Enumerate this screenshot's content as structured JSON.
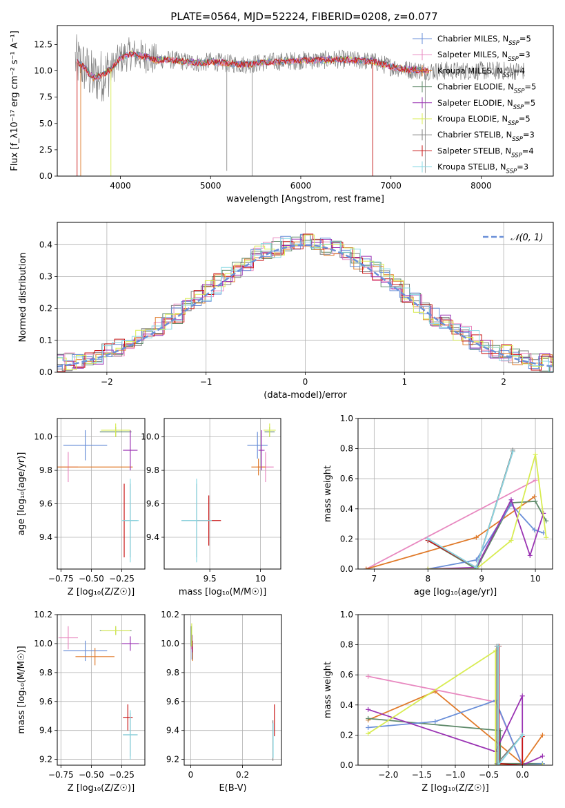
{
  "figure": {
    "title": "PLATE=0564, MJD=52224, FIBERID=0208, z=0.077"
  },
  "colors": {
    "blue": "#6a8fd8",
    "pink": "#e889c0",
    "orange": "#e07a2a",
    "green": "#5f8a6a",
    "purple": "#9a33b3",
    "yellow": "#d8ec52",
    "gray": "#7f7f7f",
    "red": "#c81414",
    "cyan": "#88d8e4"
  },
  "chart_data": [
    {
      "id": "spectrum",
      "type": "line",
      "xlabel": "wavelength [Angstrom, rest frame]",
      "ylabel": "Flux [f_λ10⁻¹⁷ erg cm⁻² s⁻¹ A⁻¹]",
      "xlim": [
        3300,
        8800
      ],
      "ylim": [
        0,
        14.3
      ],
      "xticks": [
        4000,
        5000,
        6000,
        7000,
        8000
      ],
      "yticks": [
        0.0,
        2.5,
        5.0,
        7.5,
        10.0,
        12.5
      ],
      "data_x": [
        3500,
        3600,
        3700,
        3800,
        3900,
        4000,
        4100,
        4200,
        4300,
        4400,
        4500,
        4600,
        4700,
        4800,
        4900,
        5000,
        5200,
        5400,
        5600,
        5800,
        6000,
        6200,
        6400,
        6600,
        6800,
        7000,
        7200,
        7400
      ],
      "data_y": [
        11.0,
        10.3,
        9.3,
        9.6,
        10.2,
        11.2,
        11.6,
        11.5,
        11.3,
        11.0,
        11.1,
        11.0,
        10.9,
        10.8,
        10.7,
        10.9,
        10.7,
        10.6,
        10.8,
        10.9,
        11.0,
        11.0,
        11.1,
        11.0,
        10.9,
        10.4,
        10.1,
        10.0
      ],
      "legend": [
        {
          "label": "Chabrier MILES, N",
          "sub": "SSP",
          "n": "=5",
          "color": "blue"
        },
        {
          "label": "Salpeter MILES, N",
          "sub": "SSP",
          "n": "=3",
          "color": "pink"
        },
        {
          "label": "Kroupa MILES, N",
          "sub": "SSP",
          "n": "=4",
          "color": "orange"
        },
        {
          "label": "Chabrier ELODIE, N",
          "sub": "SSP",
          "n": "=5",
          "color": "green"
        },
        {
          "label": "Salpeter ELODIE, N",
          "sub": "SSP",
          "n": "=5",
          "color": "purple"
        },
        {
          "label": "Kroupa ELODIE, N",
          "sub": "SSP",
          "n": "=5",
          "color": "yellow"
        },
        {
          "label": "Chabrier STELIB, N",
          "sub": "SSP",
          "n": "=3",
          "color": "gray"
        },
        {
          "label": "Salpeter STELIB, N",
          "sub": "SSP",
          "n": "=4",
          "color": "red"
        },
        {
          "label": "Kroupa STELIB, N",
          "sub": "SSP",
          "n": "=3",
          "color": "cyan"
        }
      ]
    },
    {
      "id": "residuals",
      "type": "histogram",
      "xlabel": "(data-model)/error",
      "ylabel": "Normed distribution",
      "xlim": [
        -2.5,
        2.5
      ],
      "ylim": [
        0,
        0.47
      ],
      "xticks": [
        -2,
        -1,
        0,
        1,
        2
      ],
      "yticks": [
        0.0,
        0.1,
        0.2,
        0.3,
        0.4
      ],
      "bin_width": 0.1,
      "grid": true,
      "legend": "𝒩(0, 1)",
      "legend_position": "top-right",
      "gaussian": {
        "mean": 0,
        "sigma": 1
      }
    },
    {
      "id": "age_vs_z",
      "type": "errorbar",
      "xlabel": "Z [log₁₀(Z/Z☉)]",
      "ylabel": "age  [log₁₀(age/yr)]",
      "xlim": [
        -0.78,
        -0.06
      ],
      "ylim": [
        9.21,
        10.11
      ],
      "xticks": [
        -0.75,
        -0.5,
        -0.25
      ],
      "xticklabels": [
        "−0.75",
        "−0.50",
        "−0.25"
      ],
      "yticks": [
        9.4,
        9.6,
        9.8,
        10.0
      ],
      "grid": true,
      "points": [
        {
          "color": "blue",
          "x": -0.55,
          "xerr": 0.18,
          "y": 9.95,
          "yerr": 0.09
        },
        {
          "color": "pink",
          "x": -0.69,
          "xerr": 0.08,
          "y": 9.82,
          "yerr": 0.09
        },
        {
          "color": "orange",
          "x": -0.47,
          "xerr": 0.31,
          "y": 9.82,
          "yerr": 0.0
        },
        {
          "color": "green",
          "x": -0.3,
          "xerr": 0.13,
          "y": 10.03,
          "yerr": 0.03
        },
        {
          "color": "purple",
          "x": -0.18,
          "xerr": 0.06,
          "y": 9.92,
          "yerr": 0.12
        },
        {
          "color": "yellow",
          "x": -0.3,
          "xerr": 0.12,
          "y": 10.04,
          "yerr": 0.04
        },
        {
          "color": "gray",
          "x": -0.18,
          "xerr": 0.06,
          "y": 9.5,
          "yerr": 0.22
        },
        {
          "color": "red",
          "x": -0.23,
          "xerr": 0.0,
          "y": 9.5,
          "yerr": 0.22
        },
        {
          "color": "cyan",
          "x": -0.18,
          "xerr": 0.07,
          "y": 9.5,
          "yerr": 0.25
        }
      ]
    },
    {
      "id": "age_vs_mass",
      "type": "errorbar",
      "xlabel": "mass [log₁₀(M/M☉)]",
      "ylabel": "",
      "xlim": [
        9.05,
        10.2
      ],
      "ylim": [
        9.21,
        10.11
      ],
      "xticks": [
        9.5,
        10.0
      ],
      "yticks": [
        9.4,
        9.6,
        9.8,
        10.0
      ],
      "grid": true,
      "points": [
        {
          "color": "blue",
          "x": 9.97,
          "xerr": 0.1,
          "y": 9.95,
          "yerr": 0.08
        },
        {
          "color": "pink",
          "x": 10.05,
          "xerr": 0.08,
          "y": 9.82,
          "yerr": 0.09
        },
        {
          "color": "orange",
          "x": 9.98,
          "xerr": 0.07,
          "y": 9.82,
          "yerr": 0.05
        },
        {
          "color": "green",
          "x": 10.09,
          "xerr": 0.05,
          "y": 10.03,
          "yerr": 0.03
        },
        {
          "color": "purple",
          "x": 10.01,
          "xerr": 0.03,
          "y": 9.92,
          "yerr": 0.12
        },
        {
          "color": "yellow",
          "x": 10.09,
          "xerr": 0.06,
          "y": 10.04,
          "yerr": 0.04
        },
        {
          "color": "gray",
          "x": 9.37,
          "xerr": 0.15,
          "y": 9.5,
          "yerr": 0.22
        },
        {
          "color": "red",
          "x": 9.49,
          "xerr": 0.12,
          "y": 9.5,
          "yerr": 0.15
        },
        {
          "color": "cyan",
          "x": 9.37,
          "xerr": 0.15,
          "y": 9.5,
          "yerr": 0.25
        }
      ]
    },
    {
      "id": "weight_vs_age",
      "type": "line",
      "xlabel": "age  [log₁₀(age/yr)]",
      "ylabel": "mass weight",
      "xlim": [
        6.7,
        10.32
      ],
      "ylim": [
        0,
        1
      ],
      "xticks": [
        7,
        8,
        9,
        10
      ],
      "yticks": [
        0.0,
        0.2,
        0.4,
        0.6,
        0.8,
        1.0
      ],
      "grid": true,
      "series": [
        {
          "color": "pink",
          "x": [
            6.85,
            10.0
          ],
          "y": [
            0.0,
            0.59
          ]
        },
        {
          "color": "orange",
          "x": [
            6.85,
            8.9,
            9.98
          ],
          "y": [
            0.0,
            0.21,
            0.48
          ]
        },
        {
          "color": "green",
          "x": [
            8.0,
            8.9,
            9.55,
            10.0,
            10.2
          ],
          "y": [
            0.19,
            0.0,
            0.44,
            0.45,
            0.32
          ]
        },
        {
          "color": "blue",
          "x": [
            8.0,
            8.9,
            9.55,
            9.98,
            10.15
          ],
          "y": [
            0.0,
            0.06,
            0.43,
            0.26,
            0.24
          ]
        },
        {
          "color": "purple",
          "x": [
            8.0,
            8.9,
            9.55,
            9.9,
            10.15
          ],
          "y": [
            0.0,
            0.01,
            0.46,
            0.09,
            0.37
          ]
        },
        {
          "color": "yellow",
          "x": [
            8.0,
            8.9,
            9.55,
            10.0,
            10.2
          ],
          "y": [
            0.0,
            0.0,
            0.19,
            0.76,
            0.21
          ]
        },
        {
          "color": "red",
          "x": [
            8.0,
            8.9,
            9.58
          ],
          "y": [
            0.19,
            0.01,
            0.78
          ]
        },
        {
          "color": "gray",
          "x": [
            8.0,
            8.9,
            9.58
          ],
          "y": [
            0.2,
            0.01,
            0.79
          ]
        },
        {
          "color": "cyan",
          "x": [
            8.0,
            8.9,
            9.58
          ],
          "y": [
            0.2,
            0.01,
            0.78
          ]
        }
      ]
    },
    {
      "id": "mass_vs_z",
      "type": "errorbar",
      "xlabel": "Z [log₁₀(Z/Z☉)]",
      "ylabel": "mass [log₁₀(M/M☉)]",
      "xlim": [
        -0.78,
        -0.06
      ],
      "ylim": [
        9.16,
        10.2
      ],
      "xticks": [
        -0.75,
        -0.5,
        -0.25
      ],
      "xticklabels": [
        "−0.75",
        "−0.50",
        "−0.25"
      ],
      "yticks": [
        9.2,
        9.4,
        9.6,
        9.8,
        10.0,
        10.2
      ],
      "grid": true,
      "points": [
        {
          "color": "blue",
          "x": -0.55,
          "xerr": 0.18,
          "y": 9.95,
          "yerr": 0.07
        },
        {
          "color": "pink",
          "x": -0.69,
          "xerr": 0.08,
          "y": 10.04,
          "yerr": 0.08
        },
        {
          "color": "orange",
          "x": -0.47,
          "xerr": 0.16,
          "y": 9.91,
          "yerr": 0.06
        },
        {
          "color": "green",
          "x": -0.3,
          "xerr": 0.13,
          "y": 10.09,
          "yerr": 0.03
        },
        {
          "color": "purple",
          "x": -0.18,
          "xerr": 0.07,
          "y": 10.0,
          "yerr": 0.05
        },
        {
          "color": "yellow",
          "x": -0.3,
          "xerr": 0.12,
          "y": 10.09,
          "yerr": 0.03
        },
        {
          "color": "gray",
          "x": -0.18,
          "xerr": 0.06,
          "y": 9.37,
          "yerr": 0.15
        },
        {
          "color": "red",
          "x": -0.2,
          "xerr": 0.04,
          "y": 9.49,
          "yerr": 0.09
        },
        {
          "color": "cyan",
          "x": -0.18,
          "xerr": 0.06,
          "y": 9.37,
          "yerr": 0.17
        }
      ]
    },
    {
      "id": "mass_vs_ebv",
      "type": "errorbar",
      "xlabel": "E(B-V)",
      "ylabel": "",
      "xlim": [
        -0.025,
        0.35
      ],
      "ylim": [
        9.16,
        10.2
      ],
      "xticks": [
        0.0,
        0.2
      ],
      "yticks": [
        9.2,
        9.4,
        9.6,
        9.8,
        10.0,
        10.2
      ],
      "grid": true,
      "points": [
        {
          "color": "blue",
          "x": 0.005,
          "xerr": 0,
          "y": 9.97,
          "yerr": 0.08
        },
        {
          "color": "pink",
          "x": 0.003,
          "xerr": 0,
          "y": 10.04,
          "yerr": 0.08
        },
        {
          "color": "orange",
          "x": 0.008,
          "xerr": 0,
          "y": 9.95,
          "yerr": 0.07
        },
        {
          "color": "green",
          "x": 0.002,
          "xerr": 0,
          "y": 10.05,
          "yerr": 0.07
        },
        {
          "color": "purple",
          "x": 0.006,
          "xerr": 0,
          "y": 10.0,
          "yerr": 0.06
        },
        {
          "color": "yellow",
          "x": 0.004,
          "xerr": 0,
          "y": 10.06,
          "yerr": 0.08
        },
        {
          "color": "gray",
          "x": 0.317,
          "xerr": 0,
          "y": 9.33,
          "yerr": 0.14
        },
        {
          "color": "red",
          "x": 0.323,
          "xerr": 0,
          "y": 9.47,
          "yerr": 0.11
        },
        {
          "color": "cyan",
          "x": 0.318,
          "xerr": 0,
          "y": 9.33,
          "yerr": 0.12
        }
      ]
    },
    {
      "id": "weight_vs_z",
      "type": "line",
      "xlabel": "Z [log₁₀(Z/Z☉)]",
      "ylabel": "mass weight",
      "xlim": [
        -2.45,
        0.45
      ],
      "ylim": [
        0,
        1
      ],
      "xticks": [
        -2.0,
        -1.5,
        -1.0,
        -0.5,
        0.0
      ],
      "xticklabels": [
        "−2.0",
        "−1.5",
        "−1.0",
        "−0.5",
        "0.0"
      ],
      "yticks": [
        0.0,
        0.2,
        0.4,
        0.6,
        0.8,
        1.0
      ],
      "grid": true,
      "series": [
        {
          "color": "pink",
          "x": [
            -2.3,
            -0.4,
            0.0
          ],
          "y": [
            0.59,
            0.42,
            0.0
          ]
        },
        {
          "color": "orange",
          "x": [
            -2.3,
            -1.3,
            0.0,
            0.3
          ],
          "y": [
            0.3,
            0.49,
            0.01,
            0.2
          ]
        },
        {
          "color": "green",
          "x": [
            -2.3,
            -0.33,
            -0.33,
            0.0,
            0.3
          ],
          "y": [
            0.31,
            0.23,
            0.01,
            0.01,
            0.01
          ]
        },
        {
          "color": "blue",
          "x": [
            -2.3,
            -1.3,
            -0.4,
            0.0,
            0.3
          ],
          "y": [
            0.25,
            0.29,
            0.43,
            0.0,
            0.01
          ]
        },
        {
          "color": "purple",
          "x": [
            -2.3,
            -0.4,
            0.0,
            0.0,
            0.3
          ],
          "y": [
            0.37,
            0.09,
            0.46,
            0.0,
            0.06
          ]
        },
        {
          "color": "yellow",
          "x": [
            -2.3,
            -0.4,
            -0.4,
            0.3
          ],
          "y": [
            0.21,
            0.76,
            0.0,
            0.0
          ]
        },
        {
          "color": "red",
          "x": [
            -0.35,
            -0.35,
            0.0,
            0.0
          ],
          "y": [
            0.79,
            0.01,
            0.0,
            0.19
          ]
        },
        {
          "color": "gray",
          "x": [
            -0.38,
            -0.38,
            0.0
          ],
          "y": [
            0.79,
            0.01,
            0.2
          ]
        },
        {
          "color": "cyan",
          "x": [
            -0.36,
            -0.36,
            0.0
          ],
          "y": [
            0.79,
            0.0,
            0.2
          ]
        }
      ]
    }
  ]
}
